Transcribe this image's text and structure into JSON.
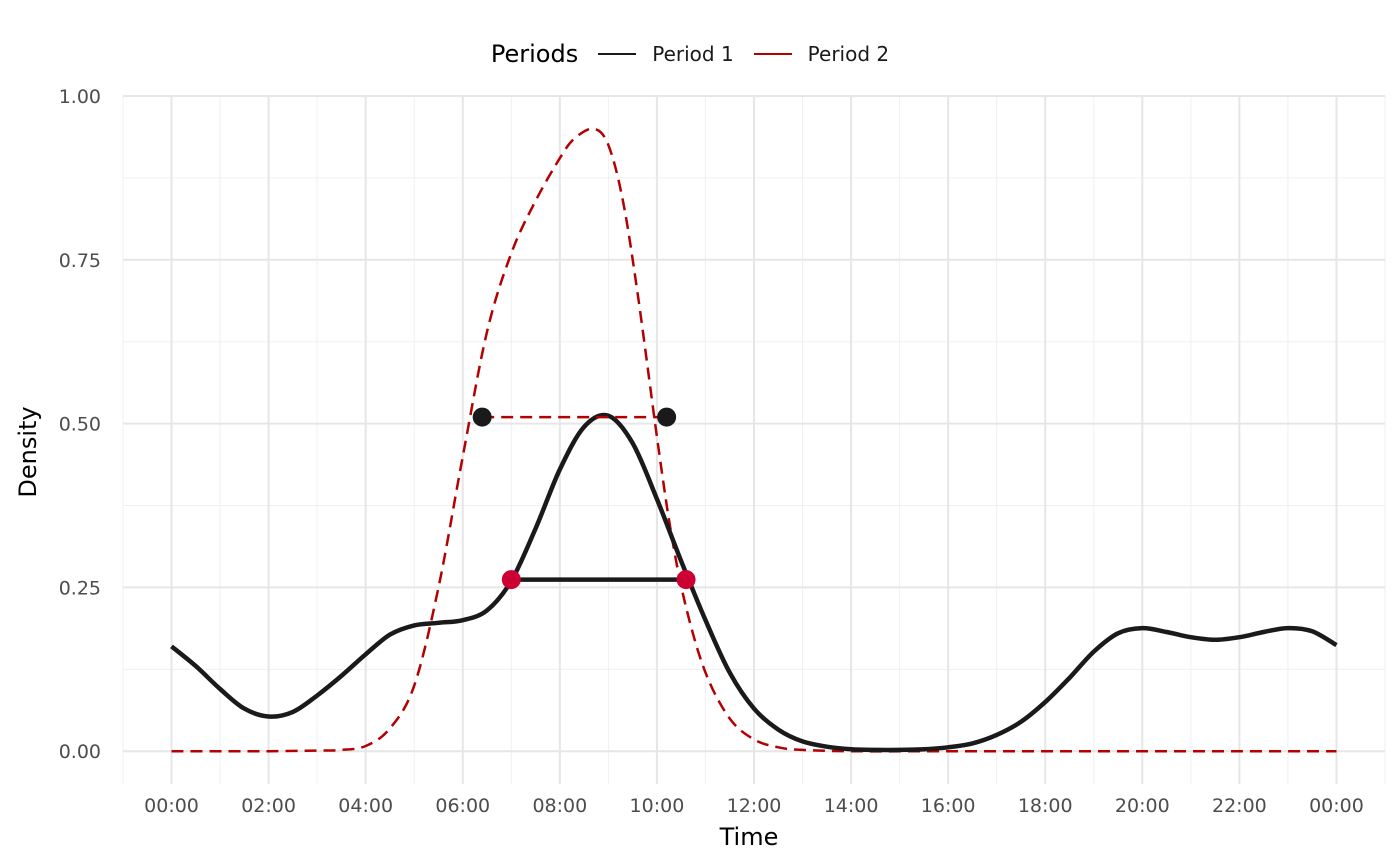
{
  "chart_data": {
    "type": "line",
    "xlabel": "Time",
    "ylabel": "Density",
    "legend": {
      "title": "Periods",
      "position": "top"
    },
    "grid": true,
    "xlim": [
      -1,
      25
    ],
    "ylim": [
      -0.05,
      1.0
    ],
    "x_ticks": [
      0,
      2,
      4,
      6,
      8,
      10,
      12,
      14,
      16,
      18,
      20,
      22,
      24
    ],
    "x_tick_labels": [
      "00:00",
      "02:00",
      "04:00",
      "06:00",
      "08:00",
      "10:00",
      "12:00",
      "14:00",
      "16:00",
      "18:00",
      "20:00",
      "22:00",
      "00:00"
    ],
    "y_ticks": [
      0,
      0.25,
      0.5,
      0.75,
      1.0
    ],
    "y_tick_labels": [
      "0.00",
      "0.25",
      "0.50",
      "0.75",
      "1.00"
    ],
    "series": [
      {
        "name": "Period 1",
        "color": "#1a1a1a",
        "style": "solid",
        "x": [
          0,
          0.5,
          1,
          1.5,
          2,
          2.5,
          3,
          3.5,
          4,
          4.5,
          5,
          5.5,
          6,
          6.5,
          7,
          7.5,
          8,
          8.5,
          9,
          9.5,
          10,
          10.5,
          11,
          11.5,
          12,
          12.5,
          13,
          13.5,
          14,
          14.5,
          15,
          15.5,
          16,
          16.5,
          17,
          17.5,
          18,
          18.5,
          19,
          19.5,
          20,
          20.5,
          21,
          21.5,
          22,
          22.5,
          23,
          23.5,
          24
        ],
        "y": [
          0.16,
          0.13,
          0.095,
          0.065,
          0.053,
          0.06,
          0.085,
          0.115,
          0.148,
          0.178,
          0.192,
          0.196,
          0.2,
          0.215,
          0.26,
          0.34,
          0.43,
          0.495,
          0.512,
          0.47,
          0.385,
          0.29,
          0.2,
          0.12,
          0.065,
          0.033,
          0.015,
          0.007,
          0.003,
          0.002,
          0.002,
          0.003,
          0.006,
          0.012,
          0.025,
          0.045,
          0.075,
          0.112,
          0.152,
          0.18,
          0.188,
          0.182,
          0.174,
          0.17,
          0.174,
          0.182,
          0.188,
          0.183,
          0.162
        ]
      },
      {
        "name": "Period 2",
        "color": "#b30000",
        "style": "dashed",
        "x": [
          0,
          1,
          2,
          3,
          3.5,
          4,
          4.5,
          5,
          5.5,
          6,
          6.5,
          7,
          7.5,
          8,
          8.3,
          8.7,
          9,
          9.3,
          9.6,
          10,
          10.3,
          10.6,
          11,
          11.5,
          12,
          12.5,
          13,
          14,
          16,
          18,
          20,
          22,
          24
        ],
        "y": [
          0,
          0,
          0,
          0.001,
          0.002,
          0.008,
          0.035,
          0.1,
          0.25,
          0.45,
          0.64,
          0.76,
          0.84,
          0.905,
          0.935,
          0.95,
          0.925,
          0.84,
          0.7,
          0.48,
          0.33,
          0.22,
          0.12,
          0.05,
          0.018,
          0.006,
          0.002,
          0,
          0,
          0,
          0,
          0,
          0
        ]
      }
    ],
    "segments": [
      {
        "series": "Period 2",
        "x": [
          6.4,
          10.2
        ],
        "y": 0.51,
        "color": "#b30000",
        "style": "dashed"
      },
      {
        "series": "Period 1",
        "x": [
          7.0,
          10.6
        ],
        "y": 0.262,
        "color": "#1a1a1a",
        "style": "solid"
      }
    ],
    "points": [
      {
        "x": 6.4,
        "y": 0.51,
        "color": "#1a1a1a"
      },
      {
        "x": 10.2,
        "y": 0.51,
        "color": "#1a1a1a"
      },
      {
        "x": 7.0,
        "y": 0.262,
        "color": "#cc0033"
      },
      {
        "x": 10.6,
        "y": 0.262,
        "color": "#cc0033"
      }
    ]
  }
}
